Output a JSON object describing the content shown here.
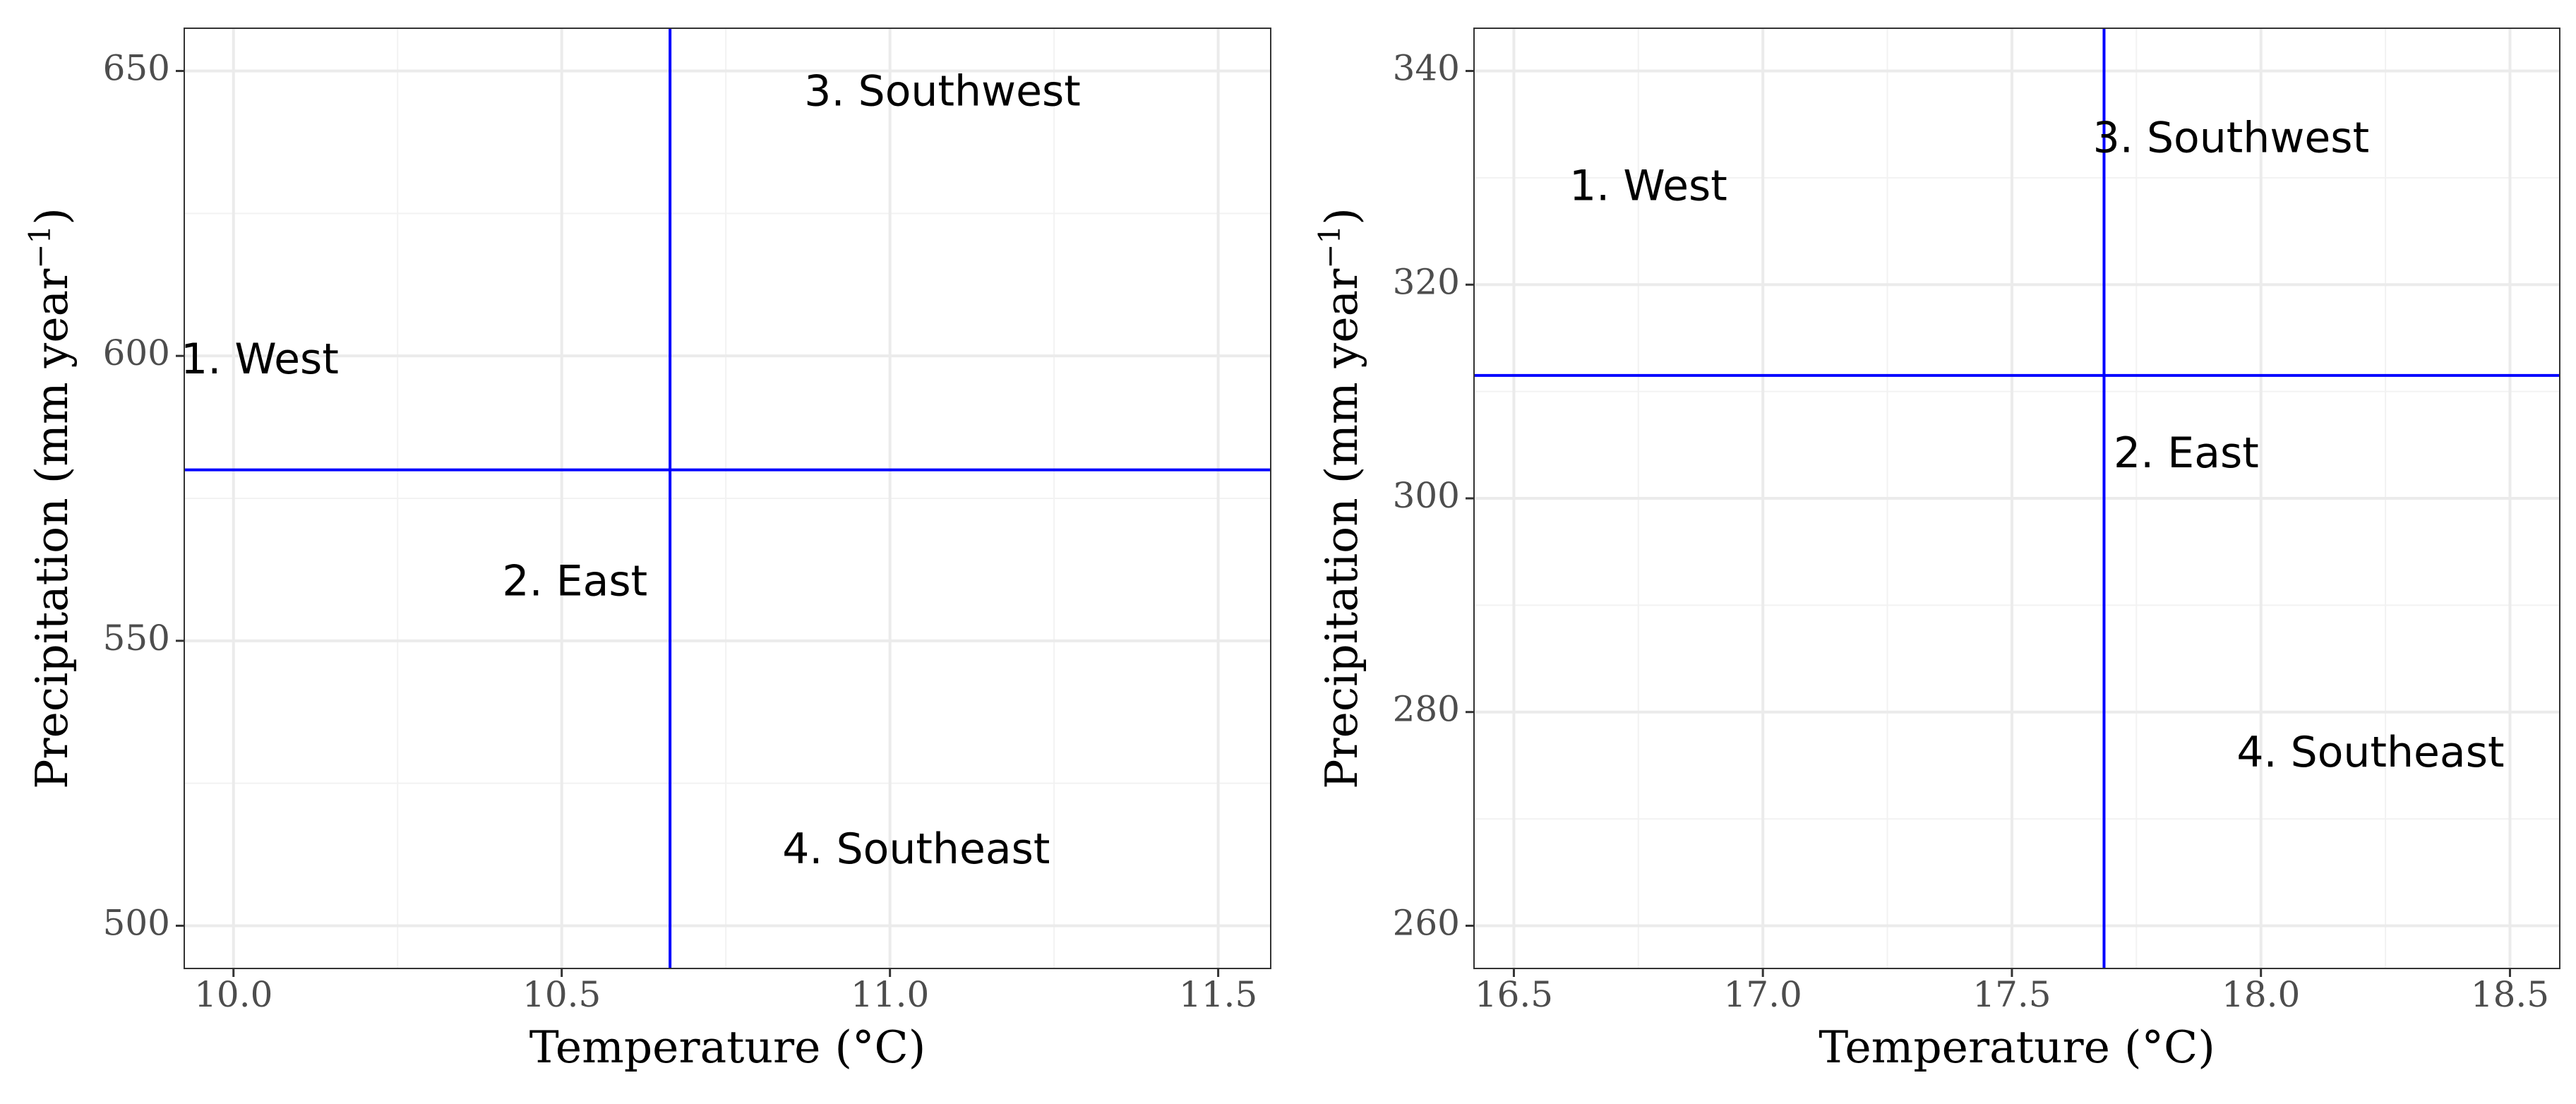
{
  "chart_data": [
    {
      "type": "scatter",
      "xlabel": "Temperature (°C)",
      "ylabel": "Precipitation (mm year",
      "ylabel_superscript": "−1",
      "ylabel_close": ")",
      "xlim": [
        9.925,
        11.58
      ],
      "ylim": [
        492.5,
        657.5
      ],
      "xticks": [
        10.0,
        10.5,
        11.0,
        11.5
      ],
      "xtick_labels": [
        "10.0",
        "10.5",
        "11.0",
        "11.5"
      ],
      "yticks": [
        500,
        550,
        600,
        650
      ],
      "ytick_labels": [
        "500",
        "550",
        "600",
        "650"
      ],
      "grid": true,
      "ref_lines": {
        "color": "#0000ff",
        "vertical_x": 10.665,
        "horizontal_y": 580
      },
      "labels": [
        {
          "text": "1. West",
          "x": 10.04,
          "y": 599
        },
        {
          "text": "2. East",
          "x": 10.52,
          "y": 560
        },
        {
          "text": "3. Southwest",
          "x": 11.08,
          "y": 646
        },
        {
          "text": "4. Southeast",
          "x": 11.04,
          "y": 513
        }
      ]
    },
    {
      "type": "scatter",
      "xlabel": "Temperature (°C)",
      "ylabel": "Precipitation (mm year",
      "ylabel_superscript": "−1",
      "ylabel_close": ")",
      "xlim": [
        16.42,
        18.6
      ],
      "ylim": [
        256,
        344
      ],
      "xticks": [
        16.5,
        17.0,
        17.5,
        18.0,
        18.5
      ],
      "xtick_labels": [
        "16.5",
        "17.0",
        "17.5",
        "18.0",
        "18.5"
      ],
      "yticks": [
        260,
        280,
        300,
        320,
        340
      ],
      "ytick_labels": [
        "260",
        "280",
        "300",
        "320",
        "340"
      ],
      "grid": true,
      "ref_lines": {
        "color": "#0000ff",
        "vertical_x": 17.685,
        "horizontal_y": 311.5
      },
      "labels": [
        {
          "text": "1. West",
          "x": 16.77,
          "y": 329
        },
        {
          "text": "2. East",
          "x": 17.85,
          "y": 304
        },
        {
          "text": "3. Southwest",
          "x": 17.94,
          "y": 333.5
        },
        {
          "text": "4. Southeast",
          "x": 18.22,
          "y": 276
        }
      ]
    }
  ]
}
